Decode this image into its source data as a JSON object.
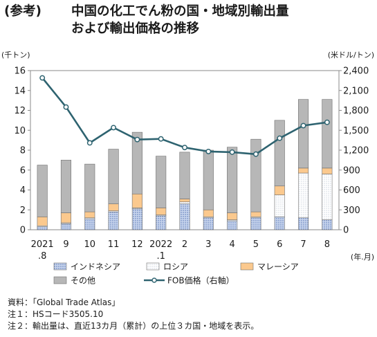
{
  "title": {
    "prefix": "(参考)",
    "line1": "中国の化工でん粉の国・地域別輸出量",
    "line2": "および輸出価格の推移"
  },
  "notes": [
    "資料：「Global Trade Atlas」",
    "注１：HSコード3505.10",
    "注２：輸出量は、直近13カ月（累計）の上位３カ国・地域を表示。"
  ],
  "chart_data": {
    "type": "bar",
    "stacked": true,
    "categories": [
      [
        "2021",
        ".8"
      ],
      [
        "9"
      ],
      [
        "10"
      ],
      [
        "11"
      ],
      [
        "12"
      ],
      [
        "2022",
        ".1"
      ],
      [
        "2"
      ],
      [
        "3"
      ],
      [
        "4"
      ],
      [
        "5"
      ],
      [
        "6"
      ],
      [
        "7"
      ],
      [
        "8"
      ]
    ],
    "series": [
      {
        "name": "インドネシア",
        "axis": "left",
        "color": "#c9d6ee",
        "pattern": "dots-blue",
        "values": [
          0.3,
          0.6,
          1.1,
          1.8,
          2.1,
          1.4,
          2.6,
          1.2,
          0.9,
          1.2,
          1.3,
          1.2,
          1.0
        ]
      },
      {
        "name": "ロシア",
        "axis": "left",
        "color": "#ffffff",
        "pattern": "dots-gray",
        "values": [
          0.1,
          0.1,
          0.1,
          0.1,
          0.1,
          0.1,
          0.2,
          0.1,
          0.1,
          0.1,
          2.2,
          4.5,
          4.6
        ]
      },
      {
        "name": "マレーシア",
        "axis": "left",
        "color": "#fbc98e",
        "values": [
          0.9,
          1.0,
          0.6,
          0.7,
          1.4,
          0.7,
          0.3,
          0.7,
          0.7,
          0.5,
          0.9,
          0.5,
          0.6
        ]
      },
      {
        "name": "その他",
        "axis": "left",
        "color": "#b7b7b7",
        "values": [
          5.2,
          5.3,
          4.8,
          5.5,
          6.2,
          5.2,
          4.7,
          6.0,
          6.6,
          7.3,
          6.6,
          6.9,
          6.9
        ]
      },
      {
        "name": "FOB価格（右軸）",
        "axis": "right",
        "type": "line",
        "color": "#2e6370",
        "values": [
          2290,
          1850,
          1310,
          1540,
          1360,
          1370,
          1240,
          1180,
          1170,
          1140,
          1380,
          1570,
          1620
        ]
      }
    ],
    "left_axis": {
      "unit_label": "(千トン)",
      "ylim": [
        0,
        16
      ],
      "ticks": [
        "0",
        "2",
        "4",
        "6",
        "8",
        "10",
        "12",
        "14",
        "16"
      ]
    },
    "right_axis": {
      "unit_label": "(米ドル/トン)",
      "ylim": [
        0,
        2400
      ],
      "ticks": [
        "0",
        "300",
        "600",
        "900",
        "1,200",
        "1,500",
        "1,800",
        "2,100",
        "2,400"
      ]
    },
    "x_axis_unit_label": "(年.月)",
    "grid": false,
    "legend": "bottom"
  }
}
